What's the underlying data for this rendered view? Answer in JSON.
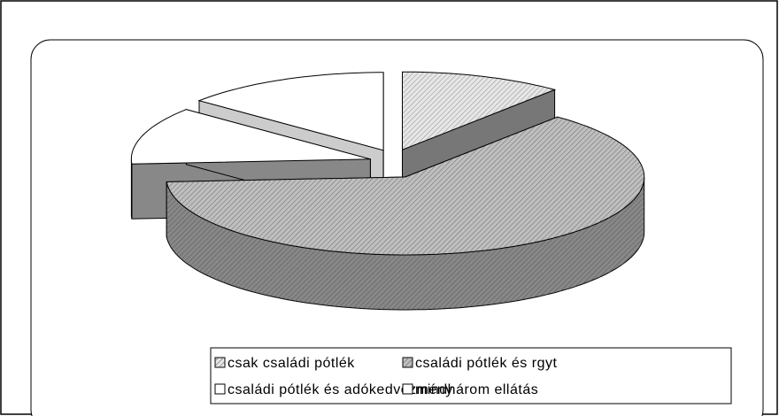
{
  "chart_data": {
    "type": "pie3d",
    "series": [
      {
        "name": "csak családi pótlék",
        "value": 11,
        "color": "#e6e6e6"
      },
      {
        "name": "családi pótlék és rgyt",
        "value": 63,
        "color": "#bfbfbf"
      },
      {
        "name": "családi pótlék és adókedvezmény",
        "value": 12,
        "color": "#ffffff"
      },
      {
        "name": "mindhárom ellátás",
        "value": 14,
        "color": "#ffffff"
      }
    ],
    "legend": "bottom"
  }
}
